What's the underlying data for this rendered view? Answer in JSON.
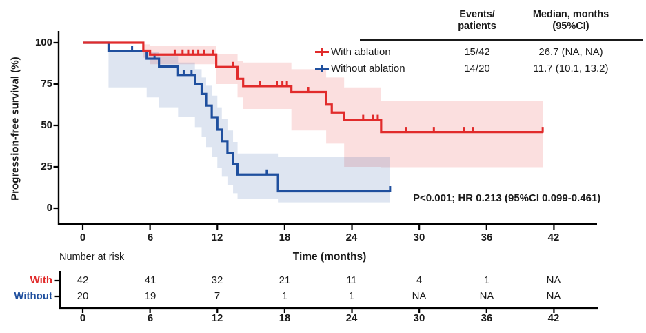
{
  "colors": {
    "red": "#e12b2b",
    "blue": "#1f4f9e",
    "axis": "#000000"
  },
  "header_table": {
    "events_header_line1": "Events/",
    "events_header_line2": "patients",
    "median_header_line1": "Median, months",
    "median_header_line2": "(95%CI)"
  },
  "chart_data": {
    "type": "line",
    "subtype": "kaplan-meier-step",
    "ylabel": "Progression-free survival  (%)",
    "xlabel": "Time (months)",
    "ylim": [
      0,
      100
    ],
    "xlim": [
      0,
      46
    ],
    "y_ticks": [
      "100",
      "75",
      "50",
      "25",
      "0"
    ],
    "y_tick_values": [
      100,
      75,
      50,
      25,
      0
    ],
    "x_ticks": [
      "0",
      "6",
      "12",
      "18",
      "24",
      "30",
      "36",
      "42"
    ],
    "x_tick_values": [
      0,
      6,
      12,
      18,
      24,
      30,
      36,
      42
    ],
    "grid": false,
    "legend_position": "top-right",
    "annotation": "P<0.001; HR 0.213 (95%CI 0.099-0.461)",
    "series": [
      {
        "name": "With ablation",
        "color": "#e12b2b",
        "events_patients": "15/42",
        "median_ci": "26.7 (NA, NA)",
        "steps": [
          [
            0,
            100
          ],
          [
            5.4,
            95.2
          ],
          [
            6.0,
            92.8
          ],
          [
            11.9,
            85.3
          ],
          [
            13.8,
            78.2
          ],
          [
            14.3,
            73.8
          ],
          [
            18.6,
            70.2
          ],
          [
            21.7,
            62.6
          ],
          [
            22.2,
            57.8
          ],
          [
            23.3,
            53.3
          ],
          [
            26.6,
            46.0
          ]
        ],
        "end_time": 41,
        "censors": [
          [
            8.2,
            92.8
          ],
          [
            8.9,
            92.8
          ],
          [
            9.4,
            92.8
          ],
          [
            9.8,
            92.8
          ],
          [
            10.3,
            92.8
          ],
          [
            10.8,
            92.8
          ],
          [
            11.6,
            92.8
          ],
          [
            13.4,
            85.3
          ],
          [
            15.8,
            73.8
          ],
          [
            17.3,
            73.8
          ],
          [
            17.8,
            73.8
          ],
          [
            18.2,
            73.8
          ],
          [
            20.1,
            70.2
          ],
          [
            25.0,
            53.3
          ],
          [
            25.9,
            53.3
          ],
          [
            26.3,
            53.3
          ],
          [
            28.8,
            46.0
          ],
          [
            31.3,
            46.0
          ],
          [
            34.0,
            46.0
          ],
          [
            34.8,
            46.0
          ],
          [
            41,
            46.0
          ]
        ],
        "band": {
          "steps": [
            [
              5.4,
              99,
              91
            ],
            [
              6.0,
              98,
              87
            ],
            [
              11.9,
              93,
              75
            ],
            [
              13.8,
              89,
              67
            ],
            [
              14.3,
              88,
              60
            ],
            [
              18.6,
              84,
              47
            ],
            [
              21.7,
              79,
              39
            ],
            [
              23.3,
              73,
              25
            ],
            [
              26.6,
              64.7,
              24.8
            ]
          ],
          "end_time": 41
        }
      },
      {
        "name": "Without  ablation",
        "color": "#1f4f9e",
        "events_patients": "14/20",
        "median_ci": "11.7 (10.1, 13.2)",
        "steps": [
          [
            0,
            100
          ],
          [
            2.3,
            95
          ],
          [
            5.7,
            90.4
          ],
          [
            6.8,
            85.6
          ],
          [
            8.5,
            80.5
          ],
          [
            10.0,
            75.0
          ],
          [
            10.6,
            69.0
          ],
          [
            11.0,
            62.0
          ],
          [
            11.5,
            55.0
          ],
          [
            12.0,
            47.5
          ],
          [
            12.4,
            40.5
          ],
          [
            12.9,
            33.5
          ],
          [
            13.4,
            26.5
          ],
          [
            13.8,
            20.3
          ],
          [
            17.4,
            10.2
          ]
        ],
        "end_time": 27.4,
        "censors": [
          [
            4.4,
            95
          ],
          [
            6.4,
            90.4
          ],
          [
            9.0,
            80.5
          ],
          [
            9.7,
            80.5
          ],
          [
            16.4,
            20.3
          ],
          [
            27.4,
            10.2
          ]
        ],
        "band": {
          "steps": [
            [
              2.3,
              95.5,
              73
            ],
            [
              5.7,
              94.5,
              67
            ],
            [
              6.8,
              92,
              61
            ],
            [
              8.5,
              88,
              55
            ],
            [
              10.0,
              84,
              49
            ],
            [
              10.6,
              79,
              43
            ],
            [
              11.0,
              74,
              37
            ],
            [
              11.5,
              68,
              31
            ],
            [
              12.0,
              61,
              24.5
            ],
            [
              12.4,
              54,
              19
            ],
            [
              12.9,
              47,
              14
            ],
            [
              13.4,
              40,
              9
            ],
            [
              13.8,
              33,
              5.5
            ],
            [
              17.4,
              31,
              3.5
            ]
          ],
          "end_time": 27.4
        }
      }
    ],
    "risk_table": {
      "label": "Number at risk",
      "times": [
        0,
        6,
        12,
        18,
        24,
        30,
        36,
        42
      ],
      "rows": [
        {
          "label": "With",
          "color": "#e12b2b",
          "values": [
            "42",
            "41",
            "32",
            "21",
            "11",
            "4",
            "1",
            "NA"
          ]
        },
        {
          "label": "Without",
          "color": "#1f4f9e",
          "values": [
            "20",
            "19",
            "7",
            "1",
            "1",
            "NA",
            "NA",
            "NA"
          ]
        }
      ]
    }
  }
}
